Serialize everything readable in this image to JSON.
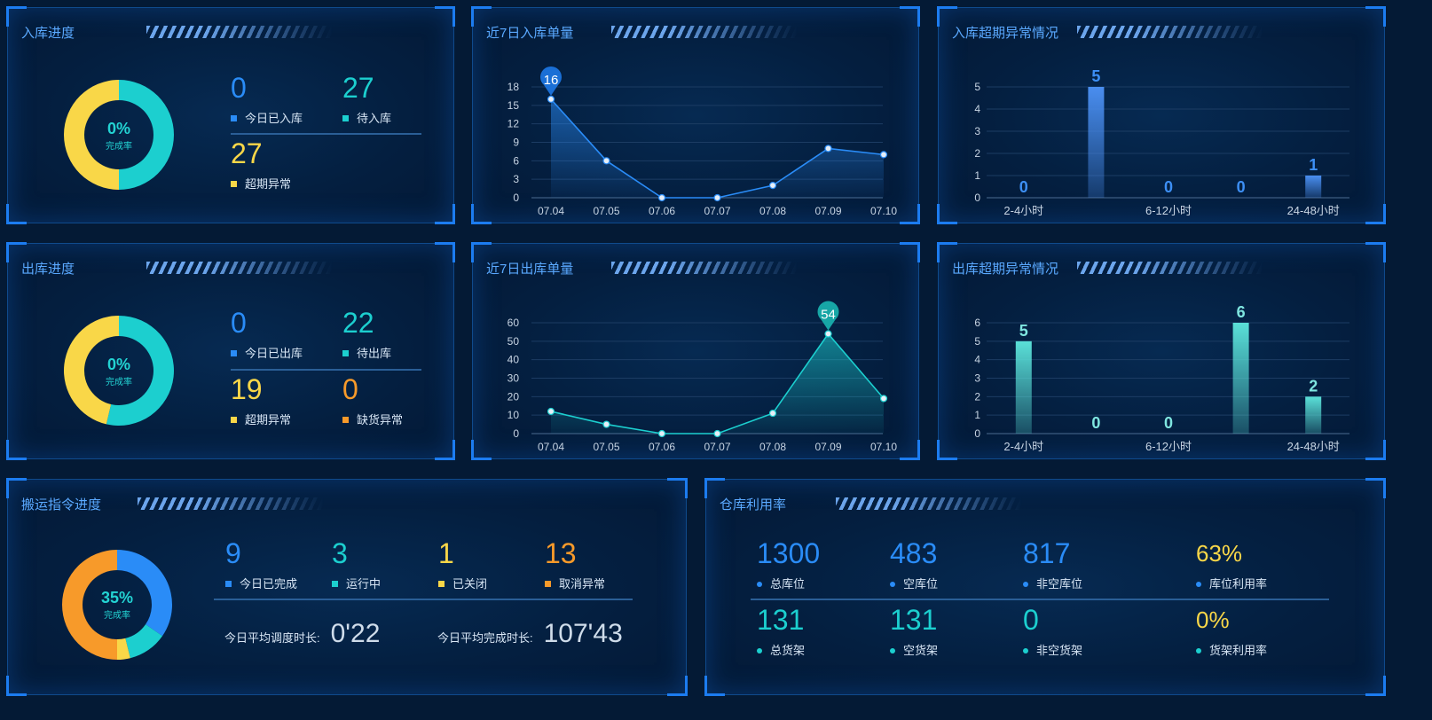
{
  "colors": {
    "blue": "#2a8cf7",
    "cyan": "#1ccfcf",
    "yellow": "#f9d748",
    "orange": "#f79a2a",
    "bar_blue": "#4a8ef0",
    "bar_cyan": "#5ae0d8"
  },
  "inbound_progress": {
    "title": "入库进度",
    "donut": {
      "percent": "0%",
      "sub": "完成率"
    },
    "stats": [
      {
        "value": "0",
        "label": "今日已入库",
        "color": "blue"
      },
      {
        "value": "27",
        "label": "待入库",
        "color": "cyan"
      },
      {
        "value": "27",
        "label": "超期异常",
        "color": "yellow"
      }
    ]
  },
  "inbound_7day": {
    "title": "近7日入库单量"
  },
  "inbound_overdue": {
    "title": "入库超期异常情况"
  },
  "outbound_progress": {
    "title": "出库进度",
    "donut": {
      "percent": "0%",
      "sub": "完成率"
    },
    "stats": [
      {
        "value": "0",
        "label": "今日已出库",
        "color": "blue"
      },
      {
        "value": "22",
        "label": "待出库",
        "color": "cyan"
      },
      {
        "value": "19",
        "label": "超期异常",
        "color": "yellow"
      },
      {
        "value": "0",
        "label": "缺货异常",
        "color": "orange"
      }
    ]
  },
  "outbound_7day": {
    "title": "近7日出库单量"
  },
  "outbound_overdue": {
    "title": "出库超期异常情况"
  },
  "transport": {
    "title": "搬运指令进度",
    "donut": {
      "percent": "35%",
      "sub": "完成率"
    },
    "stats": [
      {
        "value": "9",
        "label": "今日已完成",
        "color": "blue"
      },
      {
        "value": "3",
        "label": "运行中",
        "color": "cyan"
      },
      {
        "value": "1",
        "label": "已关闭",
        "color": "yellow"
      },
      {
        "value": "13",
        "label": "取消异常",
        "color": "orange"
      }
    ],
    "avg_dispatch_label": "今日平均调度时长:",
    "avg_dispatch_value": "0'22",
    "avg_complete_label": "今日平均完成时长:",
    "avg_complete_value": "107'43"
  },
  "warehouse": {
    "title": "仓库利用率",
    "row1": [
      {
        "value": "1300",
        "label": "总库位",
        "color": "blue"
      },
      {
        "value": "483",
        "label": "空库位",
        "color": "blue"
      },
      {
        "value": "817",
        "label": "非空库位",
        "color": "blue"
      },
      {
        "value": "63%",
        "label": "库位利用率",
        "color": "yellow"
      }
    ],
    "row2": [
      {
        "value": "131",
        "label": "总货架",
        "color": "cyan"
      },
      {
        "value": "131",
        "label": "空货架",
        "color": "cyan"
      },
      {
        "value": "0",
        "label": "非空货架",
        "color": "cyan"
      },
      {
        "value": "0%",
        "label": "货架利用率",
        "color": "yellow"
      }
    ]
  },
  "chart_data": [
    {
      "id": "inbound_donut",
      "type": "pie",
      "categories": [
        "今日已入库",
        "待入库",
        "超期异常"
      ],
      "values": [
        0,
        27,
        27
      ]
    },
    {
      "id": "inbound_7day",
      "type": "area",
      "x": [
        "07.04",
        "07.05",
        "07.06",
        "07.07",
        "07.08",
        "07.09",
        "07.10"
      ],
      "values": [
        16,
        6,
        0,
        0,
        2,
        8,
        7
      ],
      "ylim": [
        0,
        18
      ],
      "yticks": [
        0,
        3,
        6,
        9,
        12,
        15,
        18
      ],
      "max_label": "16",
      "color": "#2a8cf7"
    },
    {
      "id": "inbound_overdue",
      "type": "bar",
      "categories": [
        "2-4小时",
        "",
        "6-12小时",
        "",
        "24-48小时"
      ],
      "values": [
        0,
        5,
        0,
        0,
        1
      ],
      "ylim": [
        0,
        5
      ],
      "yticks": [
        0,
        1,
        2,
        3,
        4,
        5
      ],
      "color": "#4a8ef0",
      "label_color": "#3d8ff5"
    },
    {
      "id": "outbound_donut",
      "type": "pie",
      "categories": [
        "今日已出库",
        "待出库",
        "超期异常",
        "缺货异常"
      ],
      "values": [
        0,
        22,
        19,
        0
      ]
    },
    {
      "id": "outbound_7day",
      "type": "area",
      "x": [
        "07.04",
        "07.05",
        "07.06",
        "07.07",
        "07.08",
        "07.09",
        "07.10"
      ],
      "values": [
        12,
        5,
        0,
        0,
        11,
        54,
        19
      ],
      "ylim": [
        0,
        60
      ],
      "yticks": [
        0,
        10,
        20,
        30,
        40,
        50,
        60
      ],
      "max_label": "54",
      "color": "#1ccfcf"
    },
    {
      "id": "outbound_overdue",
      "type": "bar",
      "categories": [
        "2-4小时",
        "",
        "6-12小时",
        "",
        "24-48小时"
      ],
      "values": [
        5,
        0,
        0,
        6,
        2
      ],
      "ylim": [
        0,
        6
      ],
      "yticks": [
        0,
        1,
        2,
        3,
        4,
        5,
        6
      ],
      "color": "#5ae0d8",
      "label_color": "#7fe6e0"
    },
    {
      "id": "transport_donut",
      "type": "pie",
      "categories": [
        "今日已完成",
        "运行中",
        "已关闭",
        "取消异常"
      ],
      "values": [
        9,
        3,
        1,
        13
      ]
    }
  ]
}
